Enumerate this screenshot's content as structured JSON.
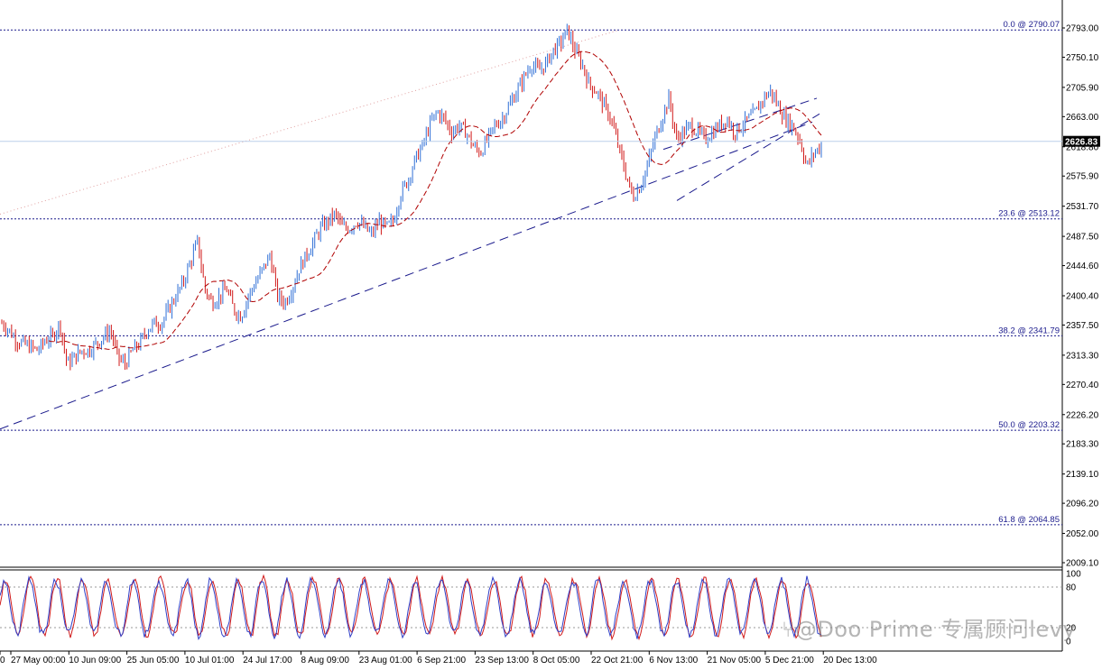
{
  "chart_data": {
    "type": "candlestick",
    "price_axis": {
      "ylim": [
        2000,
        2810
      ],
      "ticks": [
        "2793.00",
        "2750.10",
        "2705.90",
        "2663.00",
        "2618.80",
        "2575.90",
        "2531.70",
        "2487.50",
        "2444.60",
        "2400.40",
        "2357.50",
        "2313.30",
        "2270.40",
        "2226.20",
        "2183.30",
        "2139.10",
        "2096.20",
        "2052.00",
        "2009.10"
      ],
      "current_price": "2626.83"
    },
    "time_axis": {
      "labels": [
        "0",
        "27 May 00:00",
        "10 Jun 09:00",
        "25 Jun 05:00",
        "10 Jul 01:00",
        "24 Jul 17:00",
        "8 Aug 09:00",
        "23 Aug 01:00",
        "6 Sep 21:00",
        "23 Sep 13:00",
        "8 Oct 05:00",
        "22 Oct 21:00",
        "6 Nov 13:00",
        "21 Nov 05:00",
        "5 Dec 21:00",
        "20 Dec 13:00"
      ]
    },
    "fibonacci_levels": [
      {
        "label": "0.0 @ 2790.07",
        "price": 2790.07
      },
      {
        "label": "23.6 @ 2513.12",
        "price": 2513.12
      },
      {
        "label": "38.2 @ 2341.79",
        "price": 2341.79
      },
      {
        "label": "50.0 @ 2203.32",
        "price": 2203.32
      },
      {
        "label": "61.8 @ 2064.85",
        "price": 2064.85
      }
    ],
    "price_path": [
      2360,
      2350,
      2335,
      2330,
      2325,
      2320,
      2335,
      2340,
      2360,
      2300,
      2310,
      2320,
      2320,
      2330,
      2340,
      2350,
      2310,
      2300,
      2320,
      2330,
      2350,
      2360,
      2360,
      2380,
      2400,
      2420,
      2450,
      2480,
      2410,
      2390,
      2400,
      2410,
      2380,
      2370,
      2400,
      2420,
      2440,
      2460,
      2400,
      2390,
      2410,
      2440,
      2460,
      2480,
      2500,
      2510,
      2520,
      2500,
      2500,
      2510,
      2500,
      2490,
      2510,
      2500,
      2510,
      2550,
      2570,
      2600,
      2620,
      2650,
      2670,
      2660,
      2640,
      2650,
      2640,
      2620,
      2610,
      2630,
      2650,
      2660,
      2680,
      2700,
      2720,
      2740,
      2730,
      2740,
      2760,
      2770,
      2790,
      2760,
      2740,
      2710,
      2700,
      2680,
      2660,
      2620,
      2580,
      2545,
      2560,
      2590,
      2630,
      2660,
      2690,
      2630,
      2640,
      2650,
      2640,
      2630,
      2640,
      2650,
      2660,
      2640,
      2650,
      2660,
      2670,
      2690,
      2700,
      2680,
      2660,
      2650,
      2630,
      2590,
      2610,
      2620
    ],
    "trendlines": [
      {
        "style": "dashed",
        "from": {
          "x": "start",
          "price": 2205
        },
        "to": {
          "x": "6 Dec",
          "price": 2670
        }
      },
      {
        "style": "dashed",
        "from": {
          "x": "6 Nov",
          "price": 2540
        },
        "to": {
          "x": "17 Dec",
          "price": 2690
        }
      },
      {
        "style": "dotted",
        "from": {
          "x": "start",
          "price": 2520
        },
        "to": {
          "x": "22 Oct 21:00",
          "price": 2790.07
        }
      }
    ],
    "oscillator": {
      "type": "stochastic",
      "ticks": [
        "100",
        "80",
        "20",
        "0"
      ],
      "levels": [
        80,
        20
      ],
      "ylim": [
        0,
        100
      ]
    }
  },
  "colors": {
    "bull": "#2f6fd6",
    "bear": "#d11a1a",
    "ma": "#b00000",
    "fib": "#1a1a8c",
    "trend": "#1a1a8c",
    "current_line": "#bcd0ea",
    "current_label_bg": "#000000",
    "osc_main": "#2f3fc8",
    "osc_signal": "#d11a1a"
  },
  "watermark": "⑂@Doo Prime 专属顾问levy"
}
